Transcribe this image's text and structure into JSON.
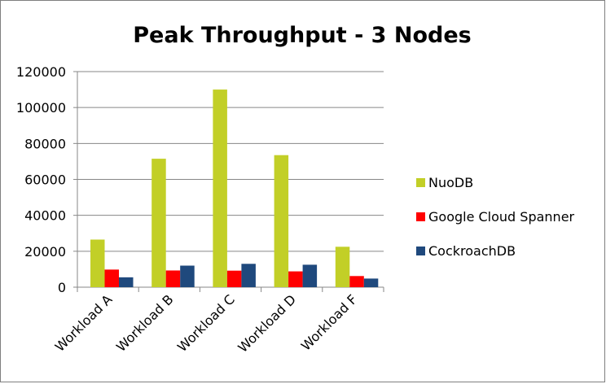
{
  "chart_data": {
    "type": "bar",
    "title": "Peak Throughput - 3 Nodes",
    "xlabel": "",
    "ylabel": "",
    "categories": [
      "Workload A",
      "Workload B",
      "Workload C",
      "Workload D",
      "Workload F"
    ],
    "series": [
      {
        "name": "NuoDB",
        "color": "#c2cf27",
        "values": [
          26500,
          71500,
          110000,
          73500,
          22500
        ]
      },
      {
        "name": "Google Cloud Spanner",
        "color": "#ff0000",
        "values": [
          9800,
          9300,
          9200,
          8800,
          6200
        ]
      },
      {
        "name": "CockroachDB",
        "color": "#1f497d",
        "values": [
          5500,
          12000,
          13000,
          12500,
          4800
        ]
      }
    ],
    "ylim": [
      0,
      120000
    ],
    "yticks": [
      0,
      20000,
      40000,
      60000,
      80000,
      100000,
      120000
    ],
    "grid": true,
    "legend_position": "right"
  }
}
